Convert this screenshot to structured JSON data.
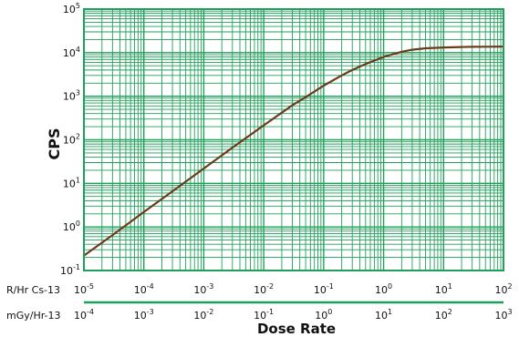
{
  "chart_data": {
    "type": "line",
    "title": "",
    "ylabel": "CPS",
    "xlabel": "Dose Rate",
    "xscale": "log",
    "yscale": "log",
    "grid": true,
    "legend": "none",
    "xlim": [
      1e-05,
      100
    ],
    "ylim": [
      0.1,
      100000
    ],
    "y_ticks": [
      {
        "base": "10",
        "exp": "-1"
      },
      {
        "base": "10",
        "exp": "0"
      },
      {
        "base": "10",
        "exp": "1"
      },
      {
        "base": "10",
        "exp": "2"
      },
      {
        "base": "10",
        "exp": "3"
      },
      {
        "base": "10",
        "exp": "4"
      },
      {
        "base": "10",
        "exp": "5"
      }
    ],
    "x_axes": [
      {
        "label": "R/Hr Cs-13",
        "ticks": [
          {
            "base": "10",
            "exp": "-5"
          },
          {
            "base": "10",
            "exp": "-4"
          },
          {
            "base": "10",
            "exp": "-3"
          },
          {
            "base": "10",
            "exp": "-2"
          },
          {
            "base": "10",
            "exp": "-1"
          },
          {
            "base": "10",
            "exp": "0"
          },
          {
            "base": "10",
            "exp": "1"
          },
          {
            "base": "10",
            "exp": "2"
          }
        ]
      },
      {
        "label": "mGy/Hr-13",
        "ticks": [
          {
            "base": "10",
            "exp": "-4"
          },
          {
            "base": "10",
            "exp": "-3"
          },
          {
            "base": "10",
            "exp": "-2"
          },
          {
            "base": "10",
            "exp": "-1"
          },
          {
            "base": "10",
            "exp": "0"
          },
          {
            "base": "10",
            "exp": "1"
          },
          {
            "base": "10",
            "exp": "2"
          },
          {
            "base": "10",
            "exp": "3"
          }
        ]
      }
    ],
    "series": [
      {
        "x": [
          1e-05,
          3e-05,
          0.0001,
          0.0003,
          0.001,
          0.003,
          0.01,
          0.03,
          0.05,
          0.1,
          0.2,
          0.3,
          0.5,
          1,
          2,
          3,
          5,
          10,
          20,
          30,
          50,
          100
        ],
        "y": [
          0.22,
          0.65,
          2.2,
          6.6,
          22,
          66,
          215,
          620,
          950,
          1750,
          3000,
          4000,
          5500,
          8000,
          10500,
          11700,
          12600,
          13200,
          13500,
          13600,
          13700,
          13800
        ]
      }
    ],
    "colors": {
      "grid": "#1fa05a",
      "line": "#6b3a1a",
      "text": "#111111"
    }
  }
}
